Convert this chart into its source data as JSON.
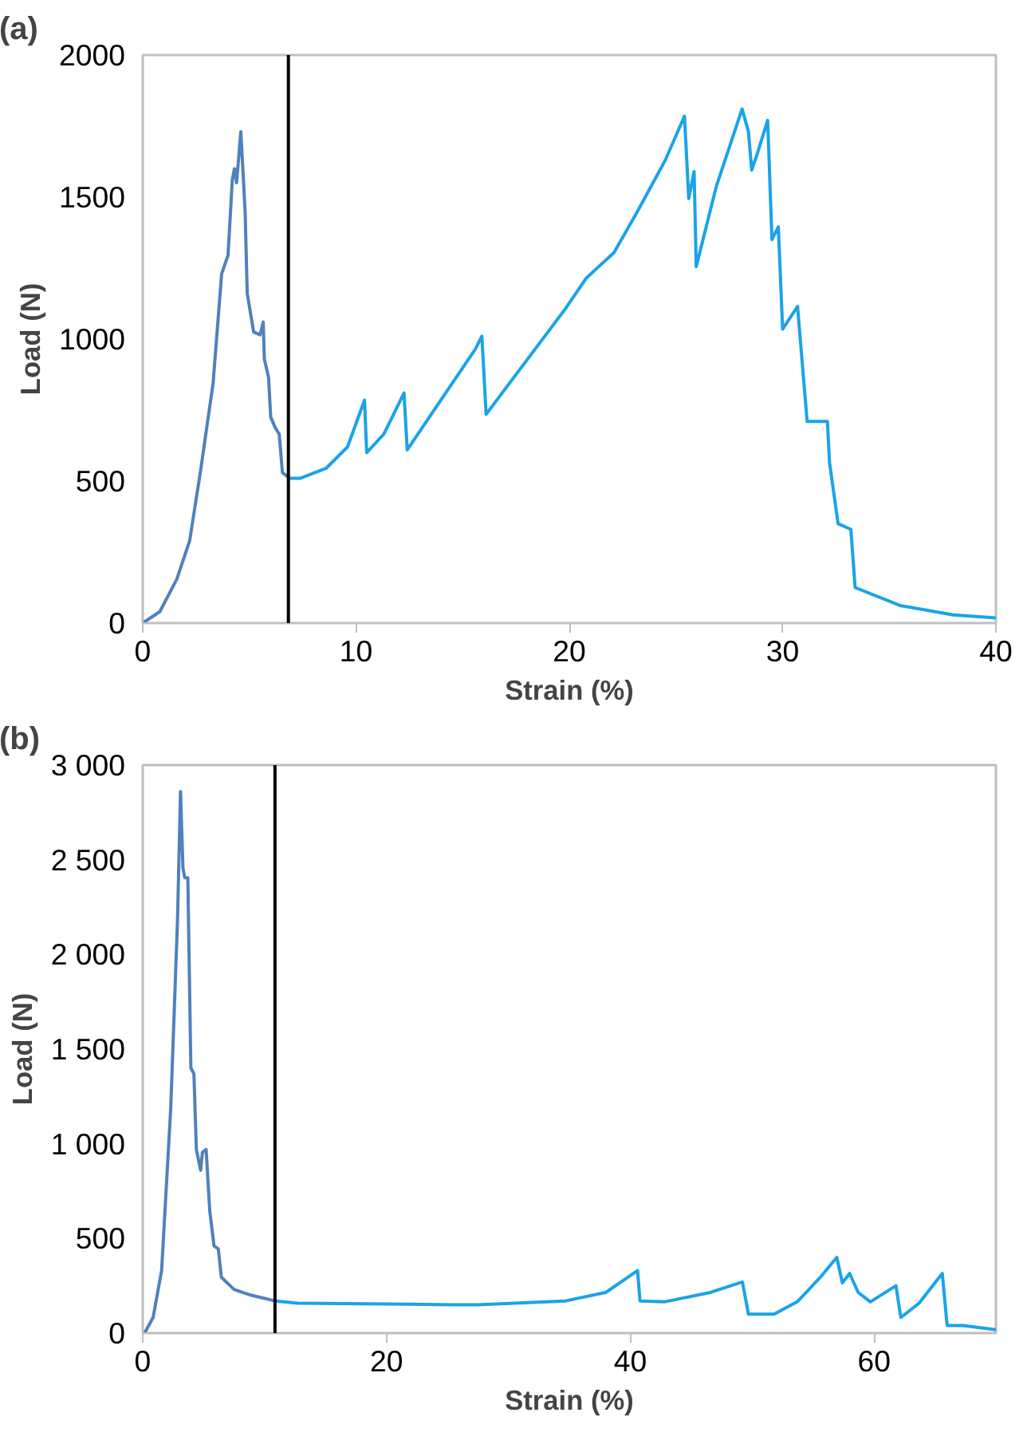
{
  "chart_data": [
    {
      "type": "line",
      "title": "(a)",
      "xlabel": "Strain (%)",
      "ylabel": "Load (N)",
      "xlim": [
        0,
        40
      ],
      "xticks": [
        0,
        10,
        20,
        30,
        40
      ],
      "ylim": [
        0,
        2000
      ],
      "yticks": [
        0,
        500,
        1000,
        1500,
        2000
      ],
      "grid": false,
      "line_style": "solid",
      "ref_lines": [
        {
          "axis": "x",
          "value": 6.83,
          "color": "#000000"
        }
      ],
      "series": [
        {
          "color": "#4f81bd",
          "x": [
            0,
            0.8,
            1.6,
            2.2,
            2.7,
            3.3,
            3.7,
            4.0,
            4.2,
            4.3,
            4.4,
            4.6,
            4.8,
            4.9,
            5.2,
            5.5,
            5.65,
            5.7,
            5.9,
            6.0,
            6.2,
            6.4,
            6.55,
            6.8
          ],
          "values": [
            0,
            40,
            155,
            290,
            530,
            845,
            1230,
            1295,
            1560,
            1600,
            1550,
            1730,
            1450,
            1160,
            1025,
            1015,
            1060,
            930,
            865,
            725,
            690,
            665,
            530,
            515
          ]
        },
        {
          "color": "#1aa3e8",
          "x": [
            6.8,
            7.4,
            8.6,
            9.6,
            10.4,
            10.5,
            11.3,
            12.25,
            12.4,
            15.6,
            15.9,
            16.1,
            19.8,
            20.8,
            22.1,
            23.2,
            24.5,
            25.4,
            25.6,
            25.85,
            25.95,
            26.9,
            28.1,
            28.4,
            28.55,
            28.8,
            29.3,
            29.5,
            29.8,
            30.0,
            30.7,
            31.0,
            31.15,
            32.1,
            32.2,
            32.6,
            33.2,
            33.4,
            35.5,
            38.0,
            40.0
          ],
          "values": [
            510,
            510,
            545,
            620,
            785,
            600,
            665,
            810,
            610,
            965,
            1010,
            735,
            1105,
            1215,
            1305,
            1450,
            1630,
            1785,
            1495,
            1590,
            1255,
            1540,
            1810,
            1730,
            1595,
            1650,
            1770,
            1350,
            1395,
            1035,
            1115,
            845,
            710,
            710,
            565,
            350,
            330,
            125,
            62,
            29,
            18
          ]
        }
      ]
    },
    {
      "type": "line",
      "title": "(b)",
      "xlabel": "Strain (%)",
      "ylabel": "Load (N)",
      "xlim": [
        0,
        70
      ],
      "xticks": [
        0,
        20,
        40,
        60
      ],
      "ylim": [
        0,
        3000
      ],
      "yticks": [
        0,
        500,
        {
          "value": 1000,
          "label": "1 000"
        },
        {
          "value": 1500,
          "label": "1 500"
        },
        {
          "value": 2000,
          "label": "2 000"
        },
        {
          "value": 2500,
          "label": "2 500"
        },
        {
          "value": 3000,
          "label": "3 000"
        }
      ],
      "grid": false,
      "line_style": "solid",
      "ref_lines": [
        {
          "axis": "x",
          "value": 10.85,
          "color": "#000000"
        }
      ],
      "series": [
        {
          "color": "#4f81bd",
          "x": [
            0.15,
            0.85,
            1.55,
            2.3,
            2.85,
            3.1,
            3.3,
            3.45,
            3.7,
            3.95,
            4.2,
            4.4,
            4.75,
            4.9,
            5.2,
            5.5,
            5.85,
            6.2,
            6.45,
            7.5,
            8.9,
            10.85
          ],
          "values": [
            0,
            82,
            330,
            1190,
            2175,
            2860,
            2455,
            2405,
            2405,
            1400,
            1370,
            970,
            860,
            955,
            970,
            645,
            460,
            445,
            295,
            230,
            200,
            170
          ]
        },
        {
          "color": "#1aa3e8",
          "x": [
            10.85,
            12.7,
            25.6,
            27.5,
            34.7,
            38.0,
            40.6,
            40.8,
            42.8,
            46.6,
            49.2,
            49.7,
            51.8,
            53.7,
            55.6,
            56.95,
            57.4,
            58.0,
            58.7,
            59.7,
            61.8,
            62.2,
            63.7,
            65.6,
            66.0,
            67.3,
            70
          ],
          "values": [
            170,
            158,
            150,
            150,
            170,
            215,
            330,
            170,
            165,
            215,
            270,
            100,
            100,
            165,
            295,
            400,
            265,
            315,
            215,
            165,
            250,
            82,
            158,
            315,
            40,
            40,
            18
          ]
        }
      ]
    }
  ]
}
